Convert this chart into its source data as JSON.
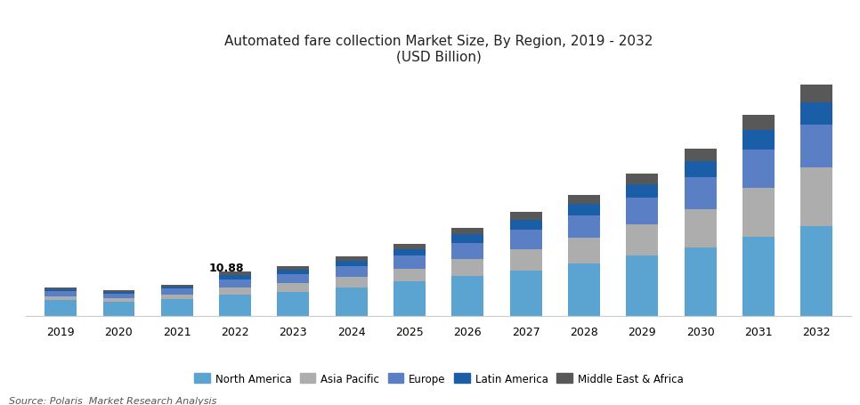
{
  "years": [
    2019,
    2020,
    2021,
    2022,
    2023,
    2024,
    2025,
    2026,
    2027,
    2028,
    2029,
    2030,
    2031,
    2032
  ],
  "north_america": [
    3.8,
    3.4,
    4.2,
    5.2,
    5.9,
    7.0,
    8.5,
    9.8,
    11.2,
    12.8,
    14.8,
    16.8,
    19.5,
    22.0
  ],
  "asia_pacific": [
    1.0,
    0.9,
    1.1,
    1.8,
    2.1,
    2.5,
    3.0,
    4.2,
    5.2,
    6.5,
    7.8,
    9.5,
    12.0,
    14.5
  ],
  "europe": [
    1.3,
    1.2,
    1.4,
    2.0,
    2.3,
    2.7,
    3.3,
    4.0,
    4.8,
    5.5,
    6.5,
    7.8,
    9.5,
    10.5
  ],
  "latin_america": [
    0.5,
    0.45,
    0.55,
    1.0,
    1.1,
    1.3,
    1.6,
    2.0,
    2.4,
    2.8,
    3.3,
    3.9,
    4.8,
    5.5
  ],
  "mea": [
    0.38,
    0.35,
    0.45,
    0.88,
    0.9,
    1.05,
    1.3,
    1.6,
    1.9,
    2.2,
    2.7,
    3.2,
    3.8,
    4.5
  ],
  "annotation_year": 2022,
  "annotation_text": "10.88",
  "colors": {
    "north_america": "#5BA3D0",
    "asia_pacific": "#ADADAD",
    "europe": "#5B7FC4",
    "latin_america": "#1A5EA8",
    "mea": "#585858"
  },
  "legend_labels": [
    "North America",
    "Asia Pacific",
    "Europe",
    "Latin America",
    "Middle East & Africa"
  ],
  "title_line1": "Automated fare collection Market Size, By Region, 2019 - 2032",
  "title_line2": "(USD Billion)",
  "source_text": "Source: Polaris  Market Research Analysis",
  "ylim": [
    0,
    60
  ],
  "bar_width": 0.55
}
